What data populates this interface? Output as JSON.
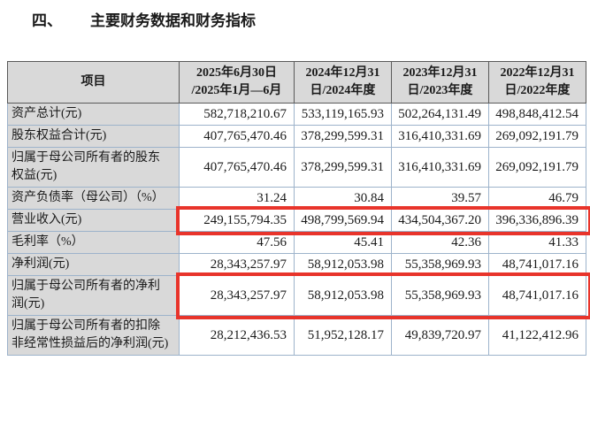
{
  "page": {
    "section_number": "四、",
    "section_title": "主要财务数据和财务指标"
  },
  "colors": {
    "highlight_red": "#e8342b",
    "header_background": "#d9d9d9",
    "grid_border": "#9db3cb"
  },
  "table": {
    "columns": {
      "item": "项目",
      "periods": [
        {
          "line1": "2025年6月30日",
          "line2": "/2025年1月—6月"
        },
        {
          "line1": "2024年12月31",
          "line2": "日/2024年度"
        },
        {
          "line1": "2023年12月31",
          "line2": "日/2023年度"
        },
        {
          "line1": "2022年12月31",
          "line2": "日/2022年度"
        }
      ]
    },
    "rows": [
      {
        "label": "资产总计(元)",
        "values": [
          "582,718,210.67",
          "533,119,165.93",
          "502,264,131.49",
          "498,848,412.54"
        ]
      },
      {
        "label": "股东权益合计(元)",
        "values": [
          "407,765,470.46",
          "378,299,599.31",
          "316,410,331.69",
          "269,092,191.79"
        ]
      },
      {
        "label": "归属于母公司所有者的股东权益(元)",
        "values": [
          "407,765,470.46",
          "378,299,599.31",
          "316,410,331.69",
          "269,092,191.79"
        ]
      },
      {
        "label": "资产负债率（母公司）（%）",
        "values": [
          "31.24",
          "30.84",
          "39.57",
          "46.79"
        ]
      },
      {
        "label": "营业收入(元)",
        "values": [
          "249,155,794.35",
          "498,799,569.94",
          "434,504,367.20",
          "396,336,896.39"
        ]
      },
      {
        "label": "毛利率（%）",
        "values": [
          "47.56",
          "45.41",
          "42.36",
          "41.33"
        ]
      },
      {
        "label": "净利润(元)",
        "values": [
          "28,343,257.97",
          "58,912,053.98",
          "55,358,969.93",
          "48,741,017.16"
        ]
      },
      {
        "label": "归属于母公司所有者的净利润(元)",
        "values": [
          "28,343,257.97",
          "58,912,053.98",
          "55,358,969.93",
          "48,741,017.16"
        ]
      },
      {
        "label": "归属于母公司所有者的扣除非经常性损益后的净利润(元)",
        "values": [
          "28,212,436.53",
          "51,952,128.17",
          "49,839,720.97",
          "41,122,412.96"
        ]
      }
    ],
    "highlights": [
      {
        "row": 4,
        "name": "highlight-box-operating-revenue"
      },
      {
        "row": 7,
        "name": "highlight-box-net-profit-attributable"
      }
    ]
  }
}
